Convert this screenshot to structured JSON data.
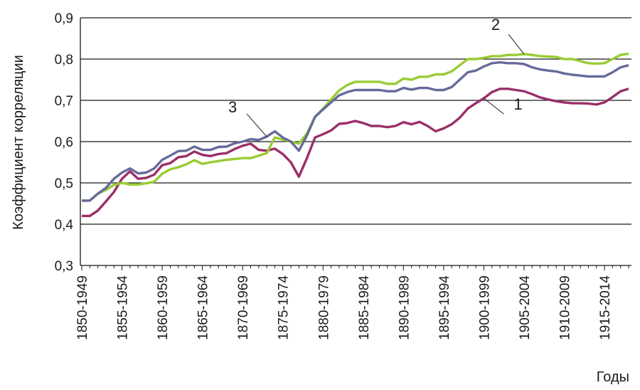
{
  "chart_data": {
    "type": "line",
    "title": "",
    "xlabel": "Годы",
    "ylabel": "Коэффициент корреляции",
    "ylim": [
      0.3,
      0.9
    ],
    "yticks": [
      "0,3",
      "0,4",
      "0,5",
      "0,6",
      "0,7",
      "0,8",
      "0,9"
    ],
    "grid": "horizontal",
    "x": [
      "1850-1949",
      "1851-1950",
      "1852-1951",
      "1853-1952",
      "1854-1953",
      "1855-1954",
      "1856-1955",
      "1857-1956",
      "1858-1957",
      "1859-1958",
      "1860-1959",
      "1861-1960",
      "1862-1961",
      "1863-1962",
      "1864-1963",
      "1865-1964",
      "1866-1965",
      "1867-1966",
      "1868-1967",
      "1869-1968",
      "1870-1969",
      "1871-1970",
      "1872-1971",
      "1873-1972",
      "1874-1973",
      "1875-1974",
      "1876-1975",
      "1877-1976",
      "1878-1977",
      "1879-1978",
      "1880-1979",
      "1881-1980",
      "1882-1981",
      "1883-1982",
      "1884-1983",
      "1885-1984",
      "1886-1985",
      "1887-1986",
      "1888-1987",
      "1889-1988",
      "1890-1989",
      "1891-1990",
      "1892-1991",
      "1893-1992",
      "1894-1993",
      "1895-1994",
      "1896-1995",
      "1897-1996",
      "1898-1997",
      "1899-1998",
      "1900-1999",
      "1901-2000",
      "1902-2001",
      "1903-2002",
      "1904-2003",
      "1905-2004",
      "1906-2005",
      "1907-2006",
      "1908-2007",
      "1909-2008",
      "1910-2009",
      "1911-2010",
      "1912-2011",
      "1913-2012",
      "1914-2013",
      "1915-2014",
      "1916-2015",
      "1917-2016",
      "1918-2017"
    ],
    "tick_labels": [
      "1850-1949",
      "1855-1954",
      "1860-1959",
      "1865-1964",
      "1870-1969",
      "1875-1974",
      "1880-1979",
      "1885-1984",
      "1890-1989",
      "1895-1994",
      "1900-1999",
      "1905-2004",
      "1910-2009",
      "1915-2014"
    ],
    "series": [
      {
        "name": "1",
        "color": "#9a2f68",
        "label_at": "1900-1999",
        "values": [
          0.42,
          0.42,
          0.433,
          0.455,
          0.478,
          0.51,
          0.528,
          0.51,
          0.512,
          0.52,
          0.543,
          0.548,
          0.562,
          0.565,
          0.576,
          0.568,
          0.565,
          0.57,
          0.572,
          0.582,
          0.59,
          0.595,
          0.58,
          0.578,
          0.583,
          0.57,
          0.55,
          0.515,
          0.56,
          0.61,
          0.618,
          0.627,
          0.643,
          0.645,
          0.65,
          0.645,
          0.638,
          0.638,
          0.635,
          0.638,
          0.647,
          0.642,
          0.648,
          0.638,
          0.625,
          0.632,
          0.642,
          0.658,
          0.68,
          0.693,
          0.705,
          0.72,
          0.728,
          0.728,
          0.725,
          0.722,
          0.715,
          0.707,
          0.702,
          0.698,
          0.695,
          0.693,
          0.693,
          0.692,
          0.69,
          0.695,
          0.708,
          0.722,
          0.728
        ]
      },
      {
        "name": "2",
        "color": "#99cc33",
        "label_at": "1905-2004",
        "values": [
          0.457,
          0.457,
          0.474,
          0.483,
          0.495,
          0.5,
          0.496,
          0.496,
          0.499,
          0.503,
          0.522,
          0.533,
          0.538,
          0.545,
          0.555,
          0.546,
          0.55,
          0.553,
          0.556,
          0.558,
          0.56,
          0.56,
          0.566,
          0.572,
          0.61,
          0.605,
          0.6,
          0.595,
          0.62,
          0.66,
          0.68,
          0.702,
          0.724,
          0.737,
          0.745,
          0.745,
          0.745,
          0.745,
          0.74,
          0.74,
          0.753,
          0.75,
          0.757,
          0.757,
          0.763,
          0.763,
          0.77,
          0.785,
          0.8,
          0.8,
          0.803,
          0.807,
          0.807,
          0.81,
          0.81,
          0.812,
          0.81,
          0.807,
          0.806,
          0.805,
          0.8,
          0.8,
          0.795,
          0.79,
          0.789,
          0.79,
          0.8,
          0.81,
          0.813
        ]
      },
      {
        "name": "3",
        "color": "#676a9a",
        "label_at": "1873-1972",
        "values": [
          0.457,
          0.457,
          0.474,
          0.488,
          0.51,
          0.525,
          0.535,
          0.523,
          0.525,
          0.535,
          0.556,
          0.566,
          0.577,
          0.578,
          0.588,
          0.58,
          0.58,
          0.587,
          0.588,
          0.596,
          0.6,
          0.606,
          0.604,
          0.612,
          0.625,
          0.61,
          0.6,
          0.578,
          0.615,
          0.66,
          0.678,
          0.695,
          0.712,
          0.72,
          0.725,
          0.725,
          0.725,
          0.725,
          0.722,
          0.722,
          0.73,
          0.726,
          0.73,
          0.73,
          0.725,
          0.725,
          0.732,
          0.75,
          0.768,
          0.772,
          0.782,
          0.79,
          0.792,
          0.79,
          0.79,
          0.788,
          0.78,
          0.775,
          0.772,
          0.77,
          0.765,
          0.762,
          0.76,
          0.758,
          0.758,
          0.758,
          0.768,
          0.78,
          0.785
        ]
      }
    ]
  }
}
